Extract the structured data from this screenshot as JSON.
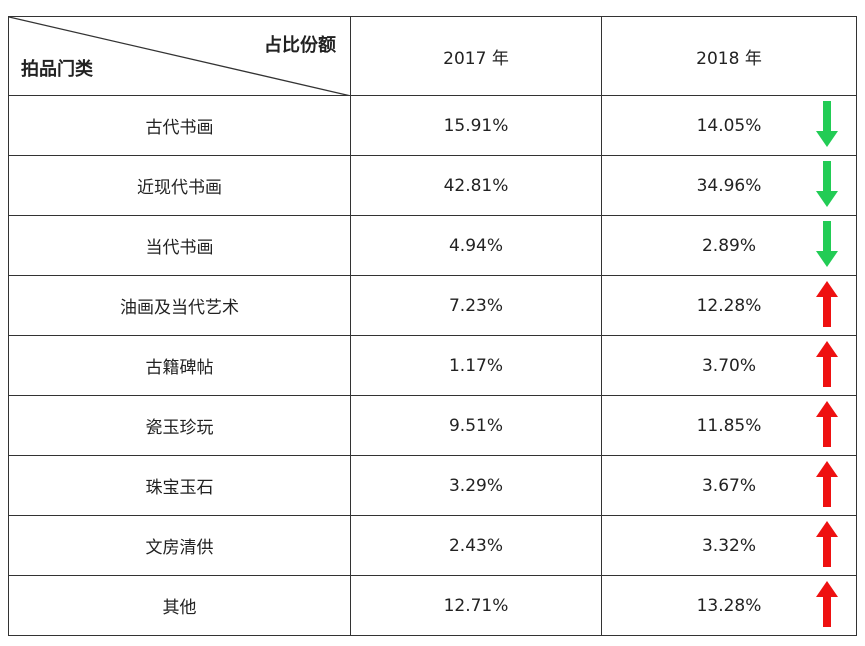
{
  "table": {
    "corner_top": "占比份额",
    "corner_bottom": "拍品门类",
    "years": [
      "2017 年",
      "2018 年"
    ],
    "rows": [
      {
        "category": "古代书画",
        "v2017": "15.91%",
        "v2018": "14.05%",
        "trend": "down"
      },
      {
        "category": "近现代书画",
        "v2017": "42.81%",
        "v2018": "34.96%",
        "trend": "down"
      },
      {
        "category": "当代书画",
        "v2017": "4.94%",
        "v2018": "2.89%",
        "trend": "down"
      },
      {
        "category": "油画及当代艺术",
        "v2017": "7.23%",
        "v2018": "12.28%",
        "trend": "up"
      },
      {
        "category": "古籍碑帖",
        "v2017": "1.17%",
        "v2018": "3.70%",
        "trend": "up"
      },
      {
        "category": "瓷玉珍玩",
        "v2017": "9.51%",
        "v2018": "11.85%",
        "trend": "up"
      },
      {
        "category": "珠宝玉石",
        "v2017": "3.29%",
        "v2018": "3.67%",
        "trend": "up"
      },
      {
        "category": "文房清供",
        "v2017": "2.43%",
        "v2018": "3.32%",
        "trend": "up"
      },
      {
        "category": "其他",
        "v2017": "12.71%",
        "v2018": "13.28%",
        "trend": "up"
      }
    ]
  },
  "colors": {
    "up_arrow": "#ee1111",
    "down_arrow": "#22cc55",
    "border": "#333333"
  },
  "icons": {
    "up": "arrow-up-icon",
    "down": "arrow-down-icon"
  }
}
